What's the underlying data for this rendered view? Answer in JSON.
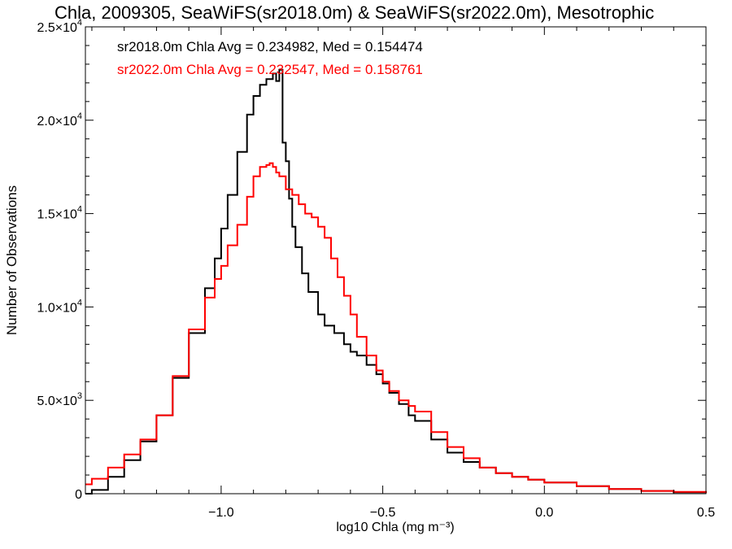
{
  "chart_data": {
    "type": "line",
    "title": "Chla, 2009305, SeaWiFS(sr2018.0m) & SeaWiFS(sr2022.0m), Mesotrophic",
    "xlabel": "log10 Chla (mg m⁻³)",
    "ylabel": "Number of Observations",
    "xlim": [
      -1.42,
      0.5
    ],
    "ylim": [
      0,
      25000
    ],
    "x_ticks": [
      {
        "value": -1.0,
        "label": "−1.0"
      },
      {
        "value": -0.5,
        "label": "−0.5"
      },
      {
        "value": 0.0,
        "label": "0.0"
      },
      {
        "value": 0.5,
        "label": "0.5"
      }
    ],
    "y_ticks": [
      {
        "value": 0,
        "mant": "0",
        "exp": ""
      },
      {
        "value": 5000,
        "mant": "5.0×10",
        "exp": "3"
      },
      {
        "value": 10000,
        "mant": "1.0×10",
        "exp": "4"
      },
      {
        "value": 15000,
        "mant": "1.5×10",
        "exp": "4"
      },
      {
        "value": 20000,
        "mant": "2.0×10",
        "exp": "4"
      },
      {
        "value": 25000,
        "mant": "2.5×10",
        "exp": "4"
      }
    ],
    "annotations": [
      {
        "text": "sr2018.0m Chla Avg = 0.234982, Med = 0.154474",
        "color": "#000000"
      },
      {
        "text": "sr2022.0m Chla Avg = 0.232547, Med = 0.158761",
        "color": "#ff0000"
      }
    ],
    "grid": false,
    "series": [
      {
        "color": "#000000",
        "x": [
          -1.42,
          -1.4,
          -1.35,
          -1.3,
          -1.25,
          -1.2,
          -1.15,
          -1.1,
          -1.05,
          -1.02,
          -1.0,
          -0.98,
          -0.95,
          -0.92,
          -0.9,
          -0.88,
          -0.86,
          -0.84,
          -0.83,
          -0.82,
          -0.81,
          -0.8,
          -0.79,
          -0.78,
          -0.77,
          -0.75,
          -0.73,
          -0.7,
          -0.68,
          -0.65,
          -0.62,
          -0.6,
          -0.58,
          -0.55,
          -0.52,
          -0.5,
          -0.48,
          -0.45,
          -0.42,
          -0.4,
          -0.35,
          -0.3,
          -0.25,
          -0.2,
          -0.15,
          -0.1,
          -0.05,
          0.0,
          0.1,
          0.2,
          0.3,
          0.4,
          0.5
        ],
        "y": [
          0,
          200,
          900,
          1800,
          2800,
          4200,
          6200,
          8600,
          11000,
          12600,
          14200,
          16000,
          18300,
          20300,
          21300,
          21900,
          22200,
          22500,
          22100,
          22700,
          18800,
          17800,
          15800,
          14300,
          13200,
          11800,
          10800,
          9600,
          9000,
          8600,
          8000,
          7600,
          7400,
          6900,
          6400,
          5900,
          5400,
          4800,
          4200,
          3900,
          2900,
          2200,
          1700,
          1400,
          1100,
          900,
          750,
          600,
          400,
          250,
          150,
          80,
          40
        ]
      },
      {
        "color": "#ff0000",
        "x": [
          -1.42,
          -1.4,
          -1.35,
          -1.3,
          -1.25,
          -1.2,
          -1.15,
          -1.1,
          -1.05,
          -1.02,
          -1.0,
          -0.98,
          -0.95,
          -0.92,
          -0.9,
          -0.88,
          -0.86,
          -0.85,
          -0.84,
          -0.83,
          -0.82,
          -0.8,
          -0.78,
          -0.76,
          -0.74,
          -0.72,
          -0.7,
          -0.68,
          -0.66,
          -0.64,
          -0.62,
          -0.6,
          -0.58,
          -0.55,
          -0.52,
          -0.5,
          -0.48,
          -0.45,
          -0.42,
          -0.4,
          -0.35,
          -0.3,
          -0.25,
          -0.2,
          -0.15,
          -0.1,
          -0.05,
          0.0,
          0.1,
          0.2,
          0.3,
          0.4,
          0.5
        ],
        "y": [
          500,
          800,
          1400,
          2100,
          2900,
          4200,
          6300,
          8800,
          10500,
          11500,
          12200,
          13300,
          14400,
          15900,
          17000,
          17500,
          17600,
          17700,
          17500,
          17200,
          17000,
          16300,
          16000,
          15500,
          15000,
          14800,
          14300,
          13700,
          12600,
          11600,
          10600,
          9600,
          8400,
          7400,
          6600,
          6000,
          5500,
          5000,
          4700,
          4400,
          3300,
          2500,
          1900,
          1400,
          1100,
          900,
          750,
          600,
          400,
          250,
          150,
          100,
          40
        ]
      }
    ]
  }
}
